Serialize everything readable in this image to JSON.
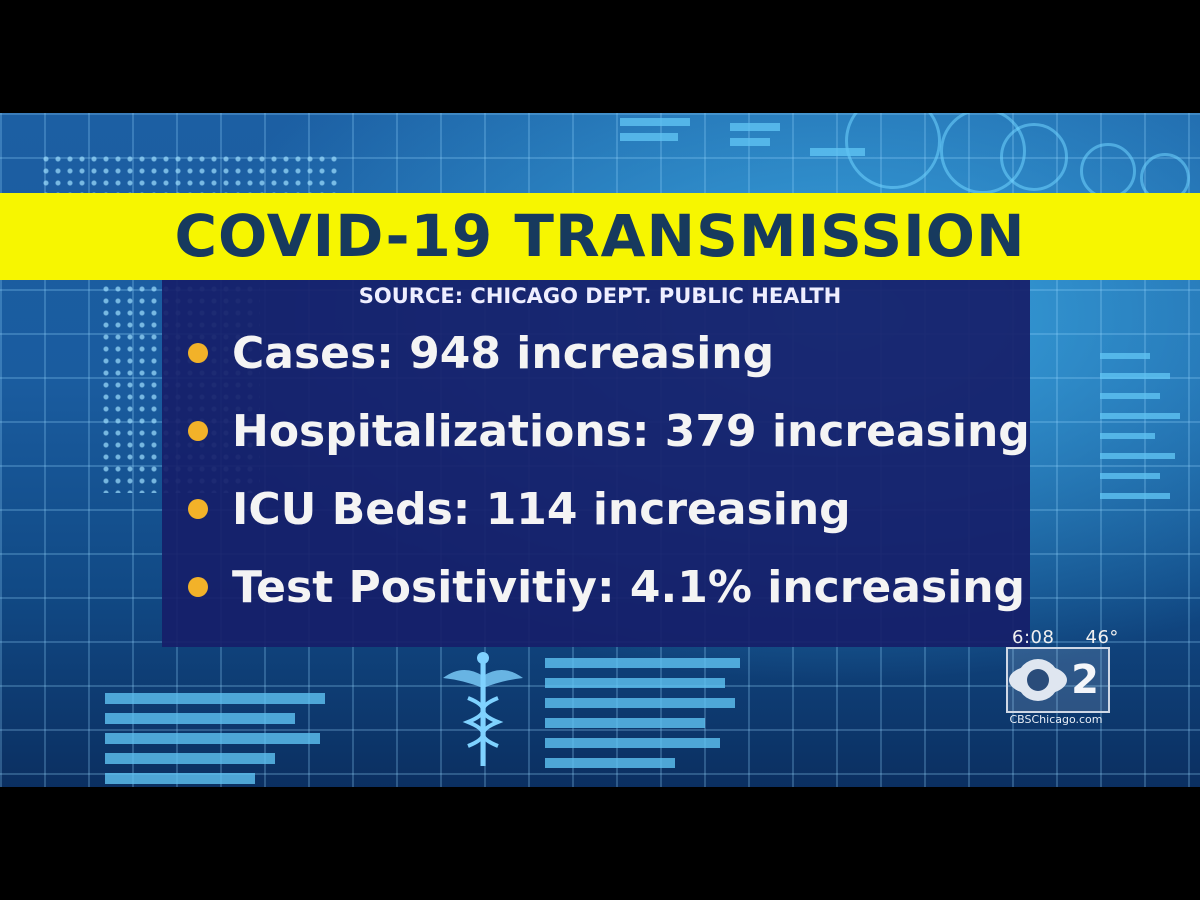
{
  "title": "COVID-19 TRANSMISSION",
  "source": "SOURCE: CHICAGO DEPT. PUBLIC HEALTH",
  "items": [
    "Cases: 948 increasing",
    "Hospitalizations: 379 increasing",
    "ICU Beds: 114 increasing",
    "Test Positivitiy: 4.1% increasing"
  ],
  "weather": {
    "time": "6:08",
    "temp": "46°"
  },
  "logo": {
    "text": "2",
    "site": "CBSChicago.com"
  },
  "colors": {
    "banner": "#f7f600",
    "title": "#173a5e",
    "panel": "#161e69",
    "bullet": "#f2b229"
  }
}
